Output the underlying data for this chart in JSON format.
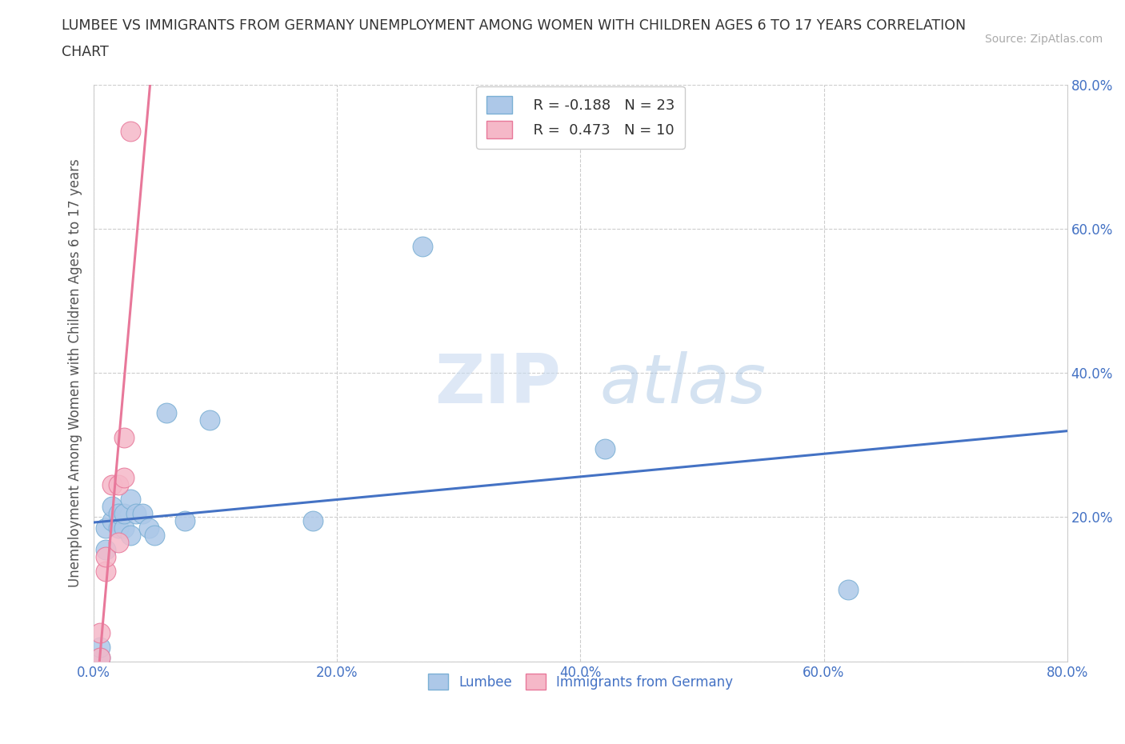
{
  "title_line1": "LUMBEE VS IMMIGRANTS FROM GERMANY UNEMPLOYMENT AMONG WOMEN WITH CHILDREN AGES 6 TO 17 YEARS CORRELATION",
  "title_line2": "CHART",
  "source": "Source: ZipAtlas.com",
  "ylabel": "Unemployment Among Women with Children Ages 6 to 17 years",
  "xlim": [
    0,
    0.8
  ],
  "ylim": [
    0,
    0.8
  ],
  "xticks": [
    0.0,
    0.2,
    0.4,
    0.6,
    0.8
  ],
  "yticks": [
    0.0,
    0.2,
    0.4,
    0.6,
    0.8
  ],
  "xticklabels": [
    "0.0%",
    "20.0%",
    "40.0%",
    "60.0%",
    "80.0%"
  ],
  "yticklabels": [
    "",
    "20.0%",
    "40.0%",
    "60.0%",
    "80.0%"
  ],
  "lumbee_color": "#adc8e8",
  "germany_color": "#f5b8c8",
  "lumbee_edge": "#7aafd4",
  "germany_edge": "#e8789a",
  "trendline_lumbee_color": "#4472c4",
  "trendline_germany_color": "#e8789a",
  "R_lumbee": -0.188,
  "N_lumbee": 23,
  "R_germany": 0.473,
  "N_germany": 10,
  "lumbee_x": [
    0.005,
    0.005,
    0.01,
    0.01,
    0.015,
    0.015,
    0.02,
    0.02,
    0.025,
    0.025,
    0.03,
    0.03,
    0.035,
    0.04,
    0.045,
    0.05,
    0.06,
    0.075,
    0.095,
    0.18,
    0.27,
    0.42,
    0.62
  ],
  "lumbee_y": [
    0.005,
    0.02,
    0.155,
    0.185,
    0.195,
    0.215,
    0.185,
    0.205,
    0.185,
    0.205,
    0.225,
    0.175,
    0.205,
    0.205,
    0.185,
    0.175,
    0.345,
    0.195,
    0.335,
    0.195,
    0.575,
    0.295,
    0.1
  ],
  "germany_x": [
    0.005,
    0.005,
    0.01,
    0.01,
    0.015,
    0.02,
    0.02,
    0.025,
    0.025,
    0.03
  ],
  "germany_y": [
    0.005,
    0.04,
    0.125,
    0.145,
    0.245,
    0.165,
    0.245,
    0.255,
    0.31,
    0.735
  ],
  "watermark_zip": "ZIP",
  "watermark_atlas": "atlas",
  "background_color": "#ffffff",
  "grid_color": "#cccccc"
}
